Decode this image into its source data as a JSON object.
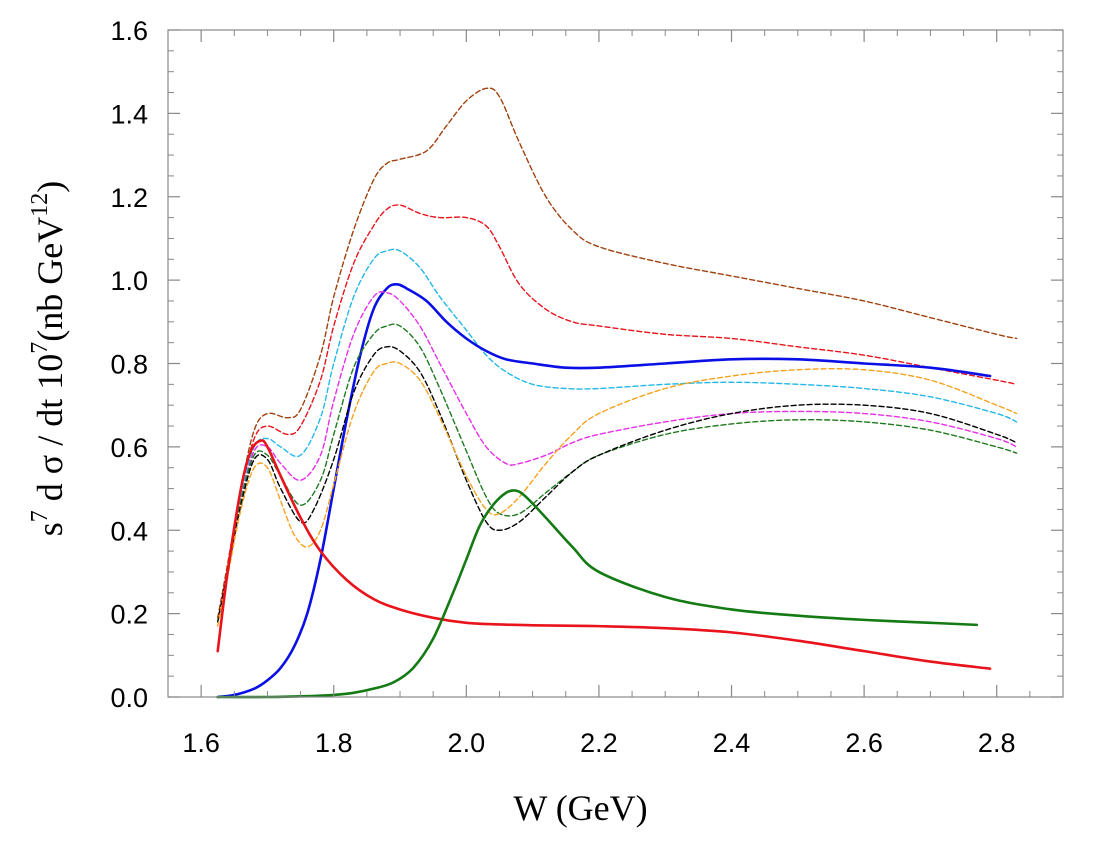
{
  "chart_data": {
    "type": "line",
    "title": "",
    "xlabel": "W (GeV)",
    "ylabel_parts": {
      "s": "s",
      "s_exp": "7",
      "mid": " d σ / dt 10",
      "ten_exp": "7",
      "unit": "(nb GeV",
      "unit_exp": "12",
      "close": ")"
    },
    "xlim": [
      1.55,
      2.9
    ],
    "ylim": [
      0.0,
      1.6
    ],
    "xticks": [
      1.6,
      1.8,
      2.0,
      2.2,
      2.4,
      2.6,
      2.8
    ],
    "xtick_labels": [
      "1.6",
      "1.8",
      "2.0",
      "2.2",
      "2.4",
      "2.6",
      "2.8"
    ],
    "yticks": [
      0.0,
      0.2,
      0.4,
      0.6,
      0.8,
      1.0,
      1.2,
      1.4,
      1.6
    ],
    "ytick_labels": [
      "0.0",
      "0.2",
      "0.4",
      "0.6",
      "0.8",
      "1.0",
      "1.2",
      "1.4",
      "1.6"
    ],
    "grid": false,
    "legend": "none",
    "series": [
      {
        "name": "brown-dashed",
        "color": "#a0410d",
        "style": "dashed",
        "x": [
          1.625,
          1.64,
          1.66,
          1.68,
          1.7,
          1.73,
          1.75,
          1.78,
          1.8,
          1.83,
          1.86,
          1.88,
          1.9,
          1.94,
          1.97,
          2.0,
          2.03,
          2.05,
          2.08,
          2.12,
          2.16,
          2.2,
          2.3,
          2.4,
          2.5,
          2.6,
          2.7,
          2.8,
          2.83
        ],
        "y": [
          0.19,
          0.32,
          0.5,
          0.64,
          0.68,
          0.67,
          0.69,
          0.82,
          0.96,
          1.12,
          1.24,
          1.28,
          1.29,
          1.31,
          1.37,
          1.43,
          1.46,
          1.44,
          1.33,
          1.2,
          1.12,
          1.08,
          1.04,
          1.01,
          0.98,
          0.95,
          0.91,
          0.87,
          0.86
        ]
      },
      {
        "name": "red-dashed",
        "color": "#e8131b",
        "style": "dashed",
        "x": [
          1.625,
          1.64,
          1.66,
          1.68,
          1.7,
          1.73,
          1.75,
          1.78,
          1.8,
          1.83,
          1.86,
          1.88,
          1.9,
          1.93,
          1.96,
          2.0,
          2.03,
          2.05,
          2.08,
          2.12,
          2.16,
          2.2,
          2.3,
          2.4,
          2.5,
          2.6,
          2.7,
          2.8,
          2.83
        ],
        "y": [
          0.18,
          0.31,
          0.49,
          0.62,
          0.65,
          0.63,
          0.65,
          0.76,
          0.89,
          1.04,
          1.13,
          1.17,
          1.18,
          1.16,
          1.15,
          1.15,
          1.13,
          1.08,
          0.99,
          0.93,
          0.9,
          0.89,
          0.87,
          0.86,
          0.84,
          0.82,
          0.79,
          0.76,
          0.75
        ]
      },
      {
        "name": "cyan-dashed",
        "color": "#23b8e8",
        "style": "dashed",
        "x": [
          1.625,
          1.64,
          1.66,
          1.68,
          1.7,
          1.72,
          1.75,
          1.78,
          1.8,
          1.83,
          1.86,
          1.88,
          1.9,
          1.93,
          1.96,
          2.0,
          2.03,
          2.06,
          2.1,
          2.15,
          2.2,
          2.3,
          2.4,
          2.5,
          2.6,
          2.7,
          2.8,
          2.83
        ],
        "y": [
          0.18,
          0.3,
          0.48,
          0.6,
          0.62,
          0.6,
          0.58,
          0.67,
          0.8,
          0.96,
          1.05,
          1.07,
          1.07,
          1.03,
          0.96,
          0.88,
          0.82,
          0.78,
          0.75,
          0.74,
          0.74,
          0.75,
          0.755,
          0.75,
          0.74,
          0.72,
          0.68,
          0.66
        ]
      },
      {
        "name": "blue-solid",
        "color": "#0a0fe6",
        "style": "solid",
        "x": [
          1.625,
          1.65,
          1.68,
          1.7,
          1.72,
          1.74,
          1.76,
          1.78,
          1.8,
          1.82,
          1.84,
          1.86,
          1.88,
          1.895,
          1.91,
          1.94,
          1.97,
          2.0,
          2.03,
          2.06,
          2.1,
          2.15,
          2.2,
          2.3,
          2.4,
          2.5,
          2.6,
          2.7,
          2.79
        ],
        "y": [
          0.0,
          0.005,
          0.02,
          0.04,
          0.07,
          0.12,
          0.2,
          0.33,
          0.5,
          0.67,
          0.82,
          0.93,
          0.98,
          0.99,
          0.98,
          0.95,
          0.9,
          0.86,
          0.83,
          0.81,
          0.8,
          0.79,
          0.79,
          0.8,
          0.81,
          0.81,
          0.8,
          0.79,
          0.77
        ]
      },
      {
        "name": "magenta-dashed",
        "color": "#e82ee8",
        "style": "dashed",
        "x": [
          1.625,
          1.64,
          1.66,
          1.68,
          1.7,
          1.72,
          1.75,
          1.78,
          1.8,
          1.83,
          1.86,
          1.88,
          1.9,
          1.93,
          1.96,
          2.0,
          2.03,
          2.06,
          2.08,
          2.12,
          2.16,
          2.2,
          2.3,
          2.4,
          2.5,
          2.6,
          2.7,
          2.8,
          2.83
        ],
        "y": [
          0.18,
          0.3,
          0.47,
          0.59,
          0.6,
          0.56,
          0.52,
          0.58,
          0.71,
          0.87,
          0.96,
          0.97,
          0.95,
          0.89,
          0.8,
          0.68,
          0.6,
          0.56,
          0.56,
          0.58,
          0.61,
          0.63,
          0.66,
          0.68,
          0.685,
          0.68,
          0.66,
          0.62,
          0.6
        ]
      },
      {
        "name": "green-dashed",
        "color": "#1f7a1f",
        "style": "dashed",
        "x": [
          1.625,
          1.64,
          1.66,
          1.68,
          1.7,
          1.72,
          1.75,
          1.78,
          1.8,
          1.83,
          1.86,
          1.88,
          1.9,
          1.93,
          1.96,
          2.0,
          2.03,
          2.05,
          2.08,
          2.12,
          2.16,
          2.2,
          2.3,
          2.4,
          2.5,
          2.6,
          2.7,
          2.8,
          2.83
        ],
        "y": [
          0.18,
          0.3,
          0.47,
          0.58,
          0.58,
          0.53,
          0.46,
          0.52,
          0.63,
          0.79,
          0.87,
          0.89,
          0.89,
          0.84,
          0.74,
          0.59,
          0.48,
          0.44,
          0.44,
          0.49,
          0.54,
          0.58,
          0.63,
          0.655,
          0.665,
          0.66,
          0.64,
          0.6,
          0.585
        ]
      },
      {
        "name": "black-dashed",
        "color": "#000000",
        "style": "dashed",
        "x": [
          1.625,
          1.64,
          1.66,
          1.68,
          1.7,
          1.72,
          1.75,
          1.77,
          1.8,
          1.83,
          1.86,
          1.88,
          1.9,
          1.93,
          1.96,
          2.0,
          2.03,
          2.05,
          2.08,
          2.12,
          2.16,
          2.2,
          2.3,
          2.4,
          2.5,
          2.6,
          2.7,
          2.8,
          2.83
        ],
        "y": [
          0.18,
          0.3,
          0.46,
          0.57,
          0.57,
          0.5,
          0.42,
          0.45,
          0.57,
          0.73,
          0.82,
          0.84,
          0.83,
          0.78,
          0.68,
          0.52,
          0.42,
          0.4,
          0.42,
          0.48,
          0.54,
          0.58,
          0.64,
          0.68,
          0.7,
          0.7,
          0.68,
          0.63,
          0.61
        ]
      },
      {
        "name": "orange-dashed",
        "color": "#f5a21e",
        "style": "dashed",
        "x": [
          1.625,
          1.64,
          1.66,
          1.68,
          1.7,
          1.72,
          1.74,
          1.76,
          1.78,
          1.8,
          1.83,
          1.86,
          1.88,
          1.9,
          1.93,
          1.96,
          2.0,
          2.03,
          2.05,
          2.08,
          2.12,
          2.16,
          2.2,
          2.3,
          2.4,
          2.5,
          2.6,
          2.7,
          2.8,
          2.83
        ],
        "y": [
          0.17,
          0.29,
          0.45,
          0.55,
          0.55,
          0.47,
          0.39,
          0.36,
          0.4,
          0.51,
          0.68,
          0.78,
          0.8,
          0.8,
          0.76,
          0.67,
          0.53,
          0.45,
          0.44,
          0.48,
          0.56,
          0.63,
          0.68,
          0.74,
          0.77,
          0.785,
          0.785,
          0.76,
          0.7,
          0.68
        ]
      },
      {
        "name": "red-solid",
        "color": "#e8131b",
        "style": "solid",
        "x": [
          1.625,
          1.64,
          1.66,
          1.675,
          1.69,
          1.7,
          1.72,
          1.75,
          1.78,
          1.82,
          1.86,
          1.9,
          1.95,
          2.0,
          2.05,
          2.1,
          2.15,
          2.2,
          2.3,
          2.4,
          2.5,
          2.6,
          2.7,
          2.79
        ],
        "y": [
          0.11,
          0.3,
          0.5,
          0.59,
          0.615,
          0.6,
          0.53,
          0.43,
          0.35,
          0.28,
          0.235,
          0.21,
          0.19,
          0.178,
          0.174,
          0.172,
          0.171,
          0.17,
          0.165,
          0.155,
          0.135,
          0.11,
          0.085,
          0.068
        ]
      },
      {
        "name": "green-solid",
        "color": "#147a14",
        "style": "solid",
        "x": [
          1.625,
          1.7,
          1.76,
          1.8,
          1.83,
          1.86,
          1.89,
          1.92,
          1.95,
          1.98,
          2.0,
          2.02,
          2.04,
          2.06,
          2.075,
          2.09,
          2.12,
          2.16,
          2.2,
          2.3,
          2.4,
          2.5,
          2.6,
          2.7,
          2.77
        ],
        "y": [
          0.0,
          0.0,
          0.002,
          0.005,
          0.01,
          0.02,
          0.035,
          0.07,
          0.14,
          0.25,
          0.33,
          0.41,
          0.46,
          0.49,
          0.495,
          0.48,
          0.43,
          0.36,
          0.3,
          0.24,
          0.21,
          0.195,
          0.185,
          0.178,
          0.173
        ]
      }
    ]
  }
}
